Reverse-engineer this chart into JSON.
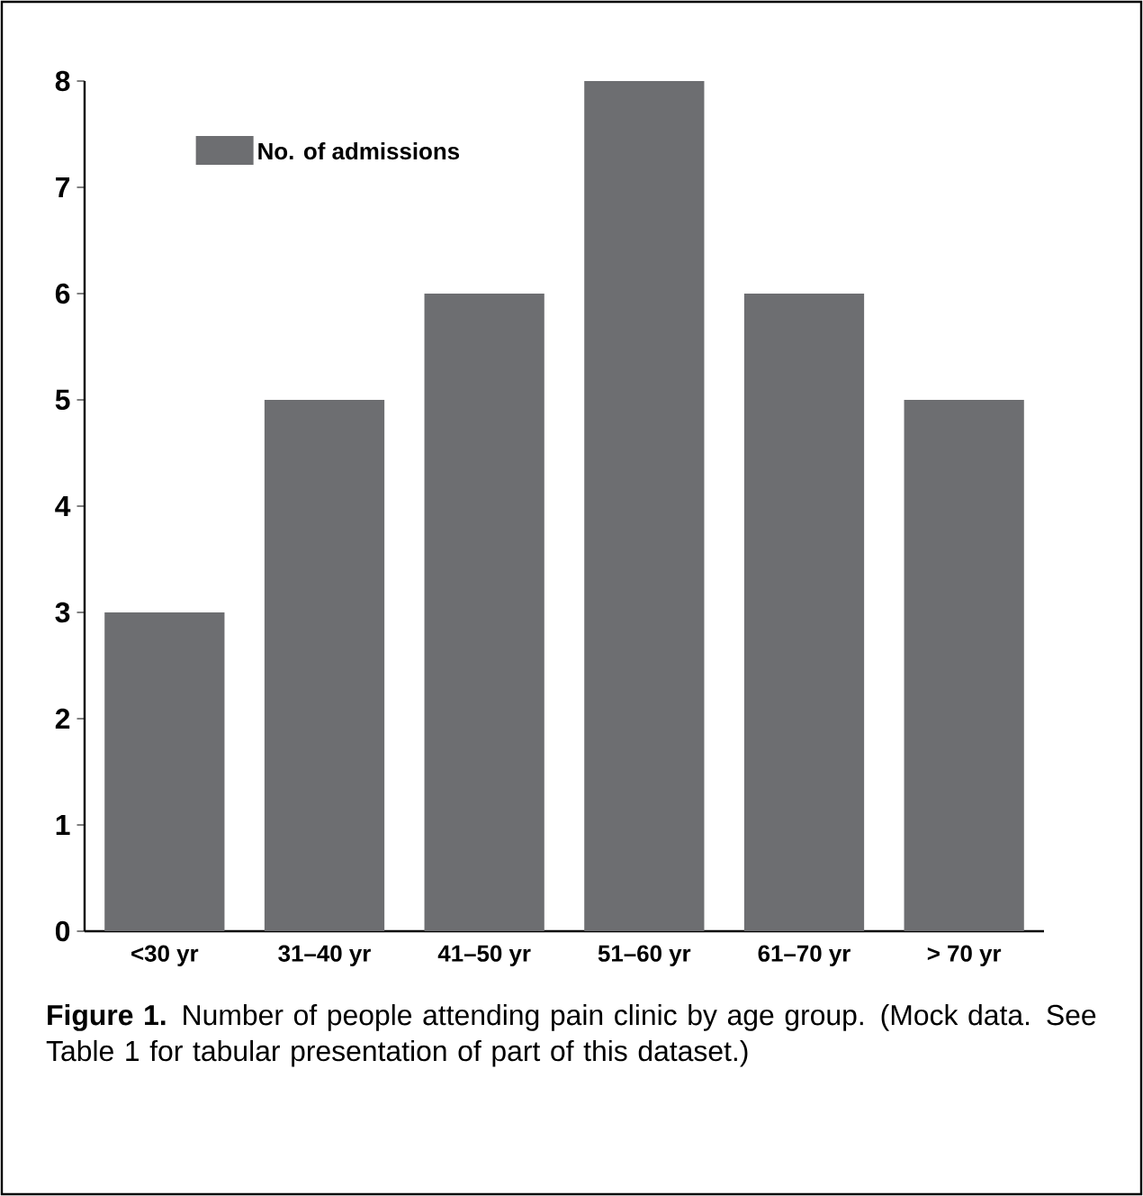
{
  "chart_data": {
    "type": "bar",
    "categories": [
      "<30 yr",
      "31–40 yr",
      "41–50 yr",
      "51–60 yr",
      "61–70 yr",
      "> 70 yr"
    ],
    "series": [
      {
        "name": "No. of admissions",
        "color": "#6d6e71",
        "values": [
          3,
          5,
          6,
          8,
          6,
          5
        ]
      }
    ],
    "ylim": [
      0,
      8
    ],
    "yticks": [
      0,
      1,
      2,
      3,
      4,
      5,
      6,
      7,
      8
    ],
    "legend": "top left",
    "grid": false,
    "annotations": [
      "**Figure 1.** Number of people attending pain clinic by age group. (Mock data. See Table 1 for tabular presentation of part of this dataset.)"
    ]
  }
}
